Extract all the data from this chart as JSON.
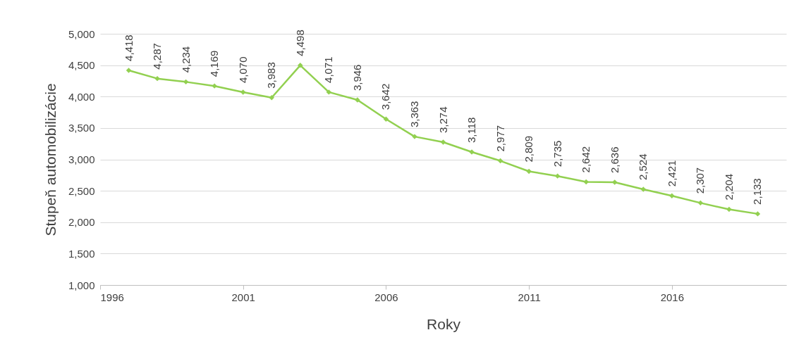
{
  "chart_data": {
    "type": "line",
    "xlabel": "Roky",
    "ylabel": "Stupeň automobilizácie",
    "x": [
      1997,
      1998,
      1999,
      2000,
      2001,
      2002,
      2003,
      2004,
      2005,
      2006,
      2007,
      2008,
      2009,
      2010,
      2011,
      2012,
      2013,
      2014,
      2015,
      2016,
      2017,
      2018,
      2019
    ],
    "series": [
      {
        "color": "#92d050",
        "values": [
          4418,
          4287,
          4234,
          4169,
          4070,
          3983,
          4498,
          4071,
          3946,
          3642,
          3363,
          3274,
          3118,
          2977,
          2809,
          2735,
          2642,
          2636,
          2524,
          2421,
          2307,
          2204,
          2133
        ],
        "value_labels": [
          "4,418",
          "4,287",
          "4,234",
          "4,169",
          "4,070",
          "3,983",
          "4,498",
          "4,071",
          "3,946",
          "3,642",
          "3,363",
          "3,274",
          "3,118",
          "2,977",
          "2,809",
          "2,735",
          "2,642",
          "2,636",
          "2,524",
          "2,421",
          "2,307",
          "2,204",
          "2,133"
        ]
      }
    ],
    "xlim": [
      1996,
      2020
    ],
    "xticks": [
      1996,
      2001,
      2006,
      2011,
      2016
    ],
    "ylim": [
      1000,
      5000
    ],
    "yticks": [
      {
        "value": 1000,
        "label": "1,000"
      },
      {
        "value": 1500,
        "label": "1,500"
      },
      {
        "value": 2000,
        "label": "2,000"
      },
      {
        "value": 2500,
        "label": "2,500"
      },
      {
        "value": 3000,
        "label": "3,000"
      },
      {
        "value": 3500,
        "label": "3,500"
      },
      {
        "value": 4000,
        "label": "4,000"
      },
      {
        "value": 4500,
        "label": "4,500"
      },
      {
        "value": 5000,
        "label": "5,000"
      }
    ],
    "grid": "y",
    "marker": "diamond",
    "line_style": "solid"
  }
}
